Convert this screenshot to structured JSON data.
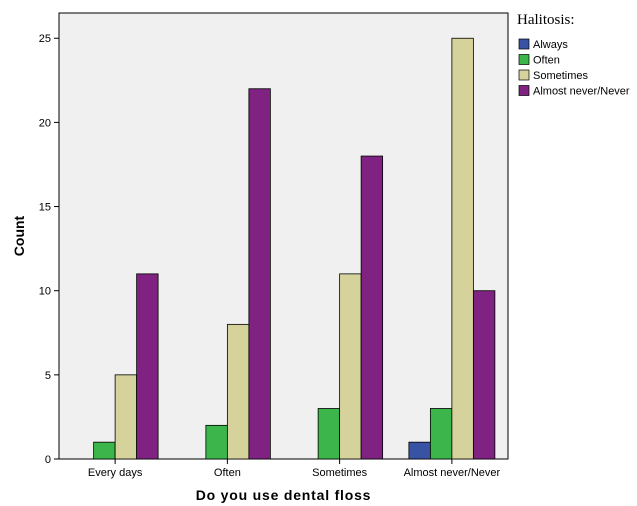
{
  "chart_data": {
    "type": "bar",
    "xlabel": "Do you use dental floss",
    "ylabel": "Count",
    "categories": [
      "Every days",
      "Often",
      "Sometimes",
      "Almost never/Never"
    ],
    "ylim": [
      0,
      26.5
    ],
    "yticks": [
      0,
      5,
      10,
      15,
      20,
      25
    ],
    "legend_title": "Halitosis:",
    "legend_position": "top-right, outside plot",
    "grid": false,
    "series": [
      {
        "name": "Always",
        "color": "#3953a4",
        "values": [
          0,
          0,
          0,
          1
        ]
      },
      {
        "name": "Often",
        "color": "#3cb54a",
        "values": [
          1,
          2,
          3,
          3
        ]
      },
      {
        "name": "Sometimes",
        "color": "#d6d29b",
        "values": [
          5,
          8,
          11,
          25
        ]
      },
      {
        "name": "Almost never/Never",
        "color": "#7f2281",
        "values": [
          11,
          22,
          18,
          10
        ]
      }
    ],
    "plot_background": "#f0f0f0"
  }
}
